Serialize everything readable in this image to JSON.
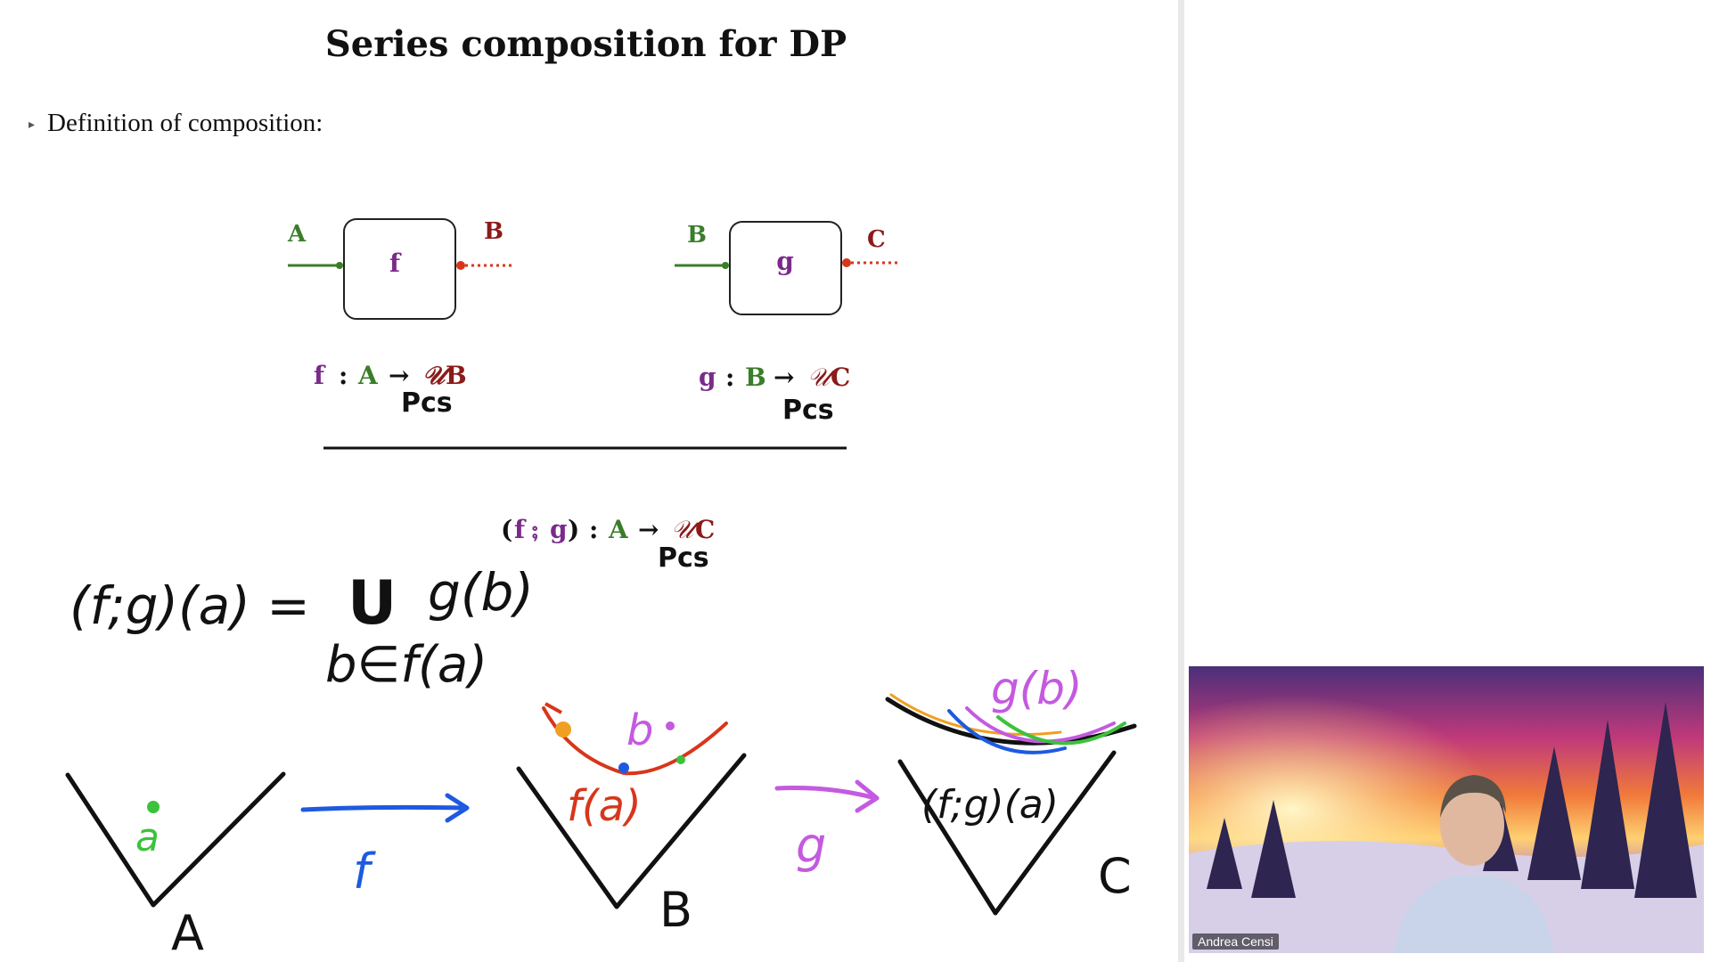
{
  "slide": {
    "title": "Series composition for DP",
    "bullet": "Definition of composition:"
  },
  "diagram_f": {
    "box_label": "f",
    "input_label": "A",
    "output_label": "B",
    "signature": {
      "name": "f",
      "colon": ":",
      "domain": "A",
      "arrow": "→",
      "codomain_prefix": "𝒰",
      "codomain": "B"
    },
    "annotation": "Pcs"
  },
  "diagram_g": {
    "box_label": "g",
    "input_label": "B",
    "output_label": "C",
    "signature": {
      "name": "g",
      "colon": ":",
      "domain": "B",
      "arrow": "→",
      "codomain_prefix": "𝒰",
      "codomain": "C"
    },
    "annotation": "Pcs"
  },
  "composition": {
    "signature_paren_open": "(",
    "f": "f",
    "semicolon": "⨟",
    "g": "g",
    "signature_paren_close": ")",
    "colon": ":",
    "domain": "A",
    "arrow": "→",
    "codomain_prefix": "𝒰",
    "codomain": "C",
    "annotation": "Pcs"
  },
  "handwriting": {
    "formula_lhs": "(f;g)(a) =",
    "union": "U",
    "formula_rhs": "g(b)",
    "subscript": "b∈f(a)",
    "cone_a_point": "a",
    "cone_a_label": "A",
    "arrow_f_label": "f",
    "cone_b_label": "B",
    "cone_b_set": "f(a)",
    "cone_b_point": "b",
    "arrow_g_label": "g",
    "cone_c_top": "g(b)",
    "cone_c_set": "(f;g)(a)",
    "cone_c_label": "C"
  },
  "video": {
    "participant_name": "Andrea Censi"
  },
  "colors": {
    "green": "#3a7d2a",
    "dark_red": "#8b1a1a",
    "purple": "#7a2a8a",
    "ink_blue": "#1e5ae0",
    "ink_green": "#3cc23c",
    "ink_red": "#d8361a",
    "ink_purple": "#c45ae0",
    "ink_orange": "#f0a020"
  }
}
